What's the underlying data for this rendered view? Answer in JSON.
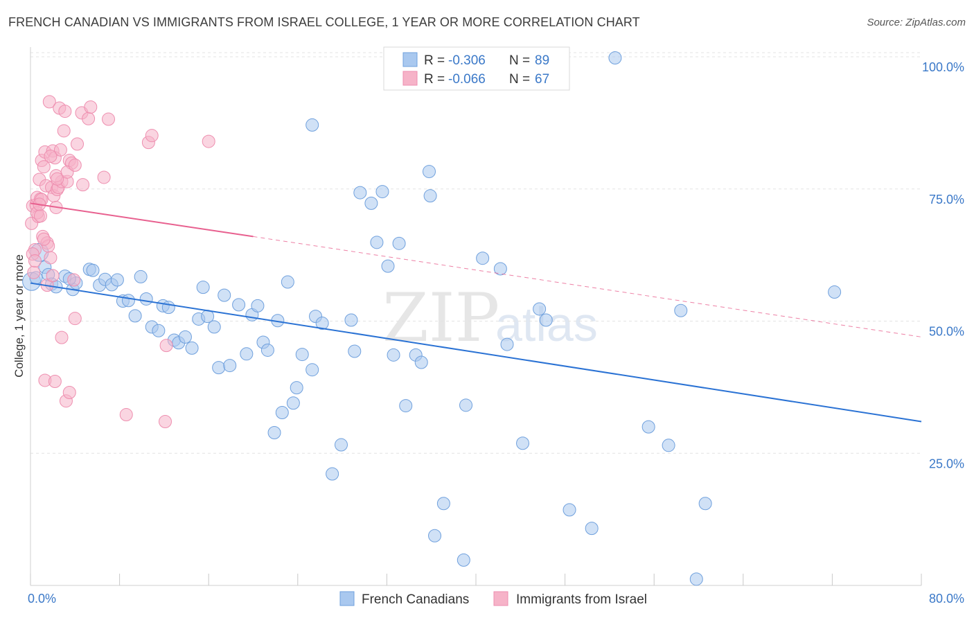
{
  "title": "FRENCH CANADIAN VS IMMIGRANTS FROM ISRAEL COLLEGE, 1 YEAR OR MORE CORRELATION CHART",
  "source": "Source: ZipAtlas.com",
  "watermark": {
    "zip": "ZIP",
    "atlas": "atlas"
  },
  "legend_top": {
    "r_label": "R =",
    "n_label": "N =",
    "rows": [
      {
        "r": "-0.306",
        "n": "89",
        "color": "#a9c8ef"
      },
      {
        "r": "-0.066",
        "n": "67",
        "color": "#f6b3c8"
      }
    ]
  },
  "legend_bottom": [
    {
      "label": "French Canadians",
      "color": "#a9c8ef"
    },
    {
      "label": "Immigrants from Israel",
      "color": "#f6b3c8"
    }
  ],
  "chart_data": {
    "type": "scatter",
    "ylabel": "College, 1 year or more",
    "xlim": [
      0,
      80
    ],
    "ylim": [
      0,
      100
    ],
    "x_tick_labels": {
      "min": "0.0%",
      "max": "80.0%"
    },
    "y_tick_labels": [
      "100.0%",
      "75.0%",
      "50.0%",
      "25.0%"
    ],
    "y_tick_values": [
      100,
      75,
      50,
      25
    ],
    "series": [
      {
        "name": "French Canadians",
        "color": "#a9c8ef",
        "stroke": "#6fa0dd",
        "trend_color": "#2a72d4",
        "trend": {
          "x0": 0,
          "y0": 57.2,
          "x1": 80,
          "y1": 31.0
        },
        "points": [
          [
            0.1,
            57.5
          ],
          [
            0.8,
            63.0
          ],
          [
            1.3,
            60.2
          ],
          [
            1.6,
            58.8
          ],
          [
            1.9,
            57.0
          ],
          [
            2.3,
            56.5
          ],
          [
            3.1,
            58.5
          ],
          [
            3.8,
            56.0
          ],
          [
            4.1,
            57.2
          ],
          [
            5.3,
            59.8
          ],
          [
            5.6,
            59.6
          ],
          [
            6.2,
            56.8
          ],
          [
            6.7,
            57.9
          ],
          [
            7.3,
            56.9
          ],
          [
            7.8,
            57.8
          ],
          [
            8.3,
            53.8
          ],
          [
            8.8,
            53.9
          ],
          [
            9.4,
            51.0
          ],
          [
            9.9,
            58.4
          ],
          [
            10.4,
            54.2
          ],
          [
            10.9,
            48.9
          ],
          [
            11.5,
            48.2
          ],
          [
            11.9,
            52.9
          ],
          [
            12.4,
            52.6
          ],
          [
            12.9,
            46.4
          ],
          [
            13.3,
            45.9
          ],
          [
            13.9,
            47.0
          ],
          [
            14.5,
            44.9
          ],
          [
            15.1,
            50.4
          ],
          [
            15.5,
            56.4
          ],
          [
            15.9,
            50.9
          ],
          [
            16.5,
            48.9
          ],
          [
            16.9,
            41.2
          ],
          [
            17.4,
            54.9
          ],
          [
            17.9,
            41.6
          ],
          [
            18.7,
            53.1
          ],
          [
            19.4,
            43.8
          ],
          [
            19.9,
            51.2
          ],
          [
            20.4,
            52.9
          ],
          [
            20.9,
            46.0
          ],
          [
            21.3,
            44.5
          ],
          [
            21.9,
            28.9
          ],
          [
            22.2,
            50.1
          ],
          [
            22.6,
            32.7
          ],
          [
            23.1,
            57.4
          ],
          [
            23.6,
            34.5
          ],
          [
            23.9,
            37.4
          ],
          [
            24.4,
            43.7
          ],
          [
            25.3,
            40.8
          ],
          [
            25.6,
            50.9
          ],
          [
            26.2,
            49.6
          ],
          [
            25.3,
            87.1
          ],
          [
            27.9,
            26.6
          ],
          [
            27.1,
            21.1
          ],
          [
            28.8,
            50.2
          ],
          [
            29.1,
            44.3
          ],
          [
            29.6,
            74.3
          ],
          [
            30.6,
            72.3
          ],
          [
            31.1,
            64.9
          ],
          [
            31.6,
            74.5
          ],
          [
            32.1,
            60.4
          ],
          [
            32.6,
            43.6
          ],
          [
            33.1,
            64.7
          ],
          [
            33.7,
            34.0
          ],
          [
            34.6,
            43.6
          ],
          [
            35.1,
            42.2
          ],
          [
            35.8,
            78.3
          ],
          [
            35.9,
            73.7
          ],
          [
            37.1,
            15.5
          ],
          [
            36.3,
            9.4
          ],
          [
            38.9,
            4.8
          ],
          [
            39.1,
            34.1
          ],
          [
            40.6,
            61.9
          ],
          [
            42.2,
            59.9
          ],
          [
            42.8,
            45.6
          ],
          [
            44.2,
            26.9
          ],
          [
            45.7,
            52.3
          ],
          [
            46.3,
            50.2
          ],
          [
            48.4,
            14.3
          ],
          [
            50.4,
            10.8
          ],
          [
            52.5,
            99.8
          ],
          [
            55.5,
            30.0
          ],
          [
            57.3,
            26.5
          ],
          [
            58.4,
            52.0
          ],
          [
            60.6,
            15.5
          ],
          [
            59.8,
            1.2
          ],
          [
            72.2,
            55.5
          ],
          [
            0.5,
            58.2
          ],
          [
            3.5,
            58.0
          ]
        ]
      },
      {
        "name": "Immigrants from Israel",
        "color": "#f6b3c8",
        "stroke": "#ee8eaf",
        "trend_color": "#e8608f",
        "trend": {
          "x0": 0,
          "y0": 72.3,
          "x1": 20,
          "y1": 66.0
        },
        "trend_dashed": {
          "x0": 20,
          "y0": 66.0,
          "x1": 80,
          "y1": 47.0
        },
        "points": [
          [
            0.1,
            68.5
          ],
          [
            0.2,
            71.8
          ],
          [
            0.3,
            59.2
          ],
          [
            0.4,
            63.5
          ],
          [
            0.5,
            72.0
          ],
          [
            0.6,
            73.4
          ],
          [
            0.7,
            69.8
          ],
          [
            0.8,
            76.8
          ],
          [
            0.9,
            73.1
          ],
          [
            1.0,
            80.4
          ],
          [
            1.1,
            66.0
          ],
          [
            1.2,
            79.2
          ],
          [
            1.3,
            82.0
          ],
          [
            1.4,
            75.6
          ],
          [
            1.5,
            64.8
          ],
          [
            1.6,
            64.2
          ],
          [
            1.7,
            91.5
          ],
          [
            1.8,
            62.0
          ],
          [
            1.9,
            75.3
          ],
          [
            2.0,
            82.2
          ],
          [
            2.1,
            73.7
          ],
          [
            2.2,
            80.9
          ],
          [
            2.3,
            71.5
          ],
          [
            2.4,
            74.9
          ],
          [
            2.5,
            75.3
          ],
          [
            2.6,
            90.3
          ],
          [
            2.7,
            82.4
          ],
          [
            2.8,
            76.4
          ],
          [
            3.0,
            86.0
          ],
          [
            3.1,
            89.7
          ],
          [
            3.3,
            76.4
          ],
          [
            3.5,
            80.4
          ],
          [
            3.7,
            79.9
          ],
          [
            4.2,
            83.5
          ],
          [
            4.6,
            89.4
          ],
          [
            4.7,
            75.8
          ],
          [
            5.2,
            88.3
          ],
          [
            5.4,
            90.5
          ],
          [
            6.6,
            77.2
          ],
          [
            7.0,
            88.2
          ],
          [
            10.6,
            83.8
          ],
          [
            10.9,
            85.1
          ],
          [
            16.0,
            84.0
          ],
          [
            1.3,
            38.8
          ],
          [
            2.2,
            38.6
          ],
          [
            2.8,
            46.9
          ],
          [
            3.2,
            34.9
          ],
          [
            3.5,
            36.5
          ],
          [
            4.0,
            50.5
          ],
          [
            8.6,
            32.3
          ],
          [
            12.1,
            31.0
          ],
          [
            12.2,
            45.4
          ],
          [
            0.2,
            62.7
          ],
          [
            1.0,
            73.0
          ],
          [
            1.8,
            81.2
          ],
          [
            2.3,
            77.5
          ],
          [
            3.3,
            78.2
          ],
          [
            4.0,
            79.5
          ],
          [
            0.6,
            70.5
          ],
          [
            0.9,
            69.9
          ],
          [
            1.5,
            56.8
          ],
          [
            2.0,
            58.6
          ],
          [
            3.9,
            57.8
          ],
          [
            0.4,
            61.4
          ],
          [
            1.2,
            65.5
          ],
          [
            2.4,
            76.9
          ],
          [
            0.8,
            72.1
          ]
        ]
      }
    ]
  }
}
